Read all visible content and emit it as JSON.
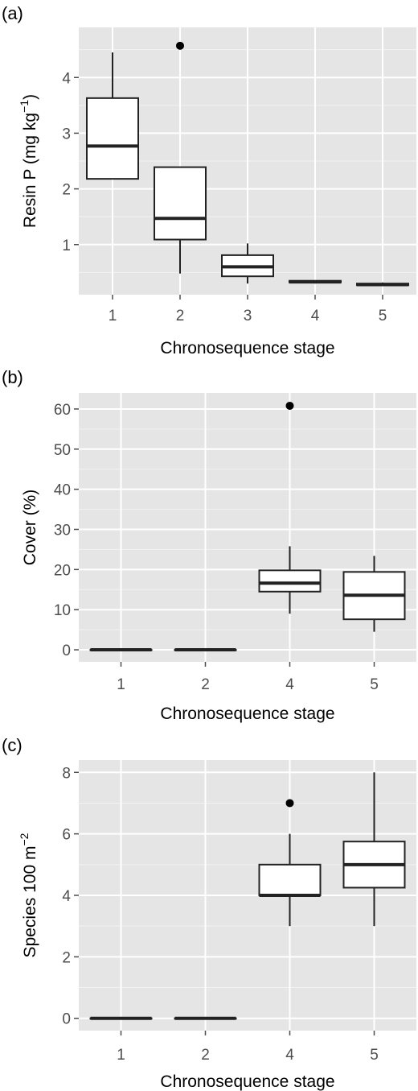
{
  "chart_data": [
    {
      "type": "box",
      "panel": "(a)",
      "xlabel": "Chronosequence stage",
      "ylabel": {
        "main": "Resin P ",
        "unit_a": "(mg kg",
        "sup": "−1",
        "unit_b": ")"
      },
      "categories": [
        "1",
        "2",
        "3",
        "4",
        "5"
      ],
      "ylim": [
        0.1,
        4.9
      ],
      "yticks": [
        1,
        2,
        3,
        4
      ],
      "ytick_labels": [
        "1",
        "2",
        "3",
        "4"
      ],
      "boxes": [
        {
          "category": "1",
          "whisker_low": 2.18,
          "q1": 2.18,
          "median": 2.77,
          "q3": 3.63,
          "whisker_high": 4.45,
          "outliers": []
        },
        {
          "category": "2",
          "whisker_low": 0.48,
          "q1": 1.09,
          "median": 1.47,
          "q3": 2.39,
          "whisker_high": 2.39,
          "outliers": [
            4.57
          ]
        },
        {
          "category": "3",
          "whisker_low": 0.3,
          "q1": 0.43,
          "median": 0.6,
          "q3": 0.81,
          "whisker_high": 1.02,
          "outliers": []
        },
        {
          "category": "4",
          "whisker_low": 0.3,
          "q1": 0.32,
          "median": 0.33,
          "q3": 0.35,
          "whisker_high": 0.35,
          "outliers": []
        },
        {
          "category": "5",
          "whisker_low": 0.26,
          "q1": 0.27,
          "median": 0.28,
          "q3": 0.3,
          "whisker_high": 0.32,
          "outliers": []
        }
      ]
    },
    {
      "type": "box",
      "panel": "(b)",
      "xlabel": "Chronosequence stage",
      "ylabel": {
        "main": "Cover (%)"
      },
      "categories": [
        "1",
        "2",
        "4",
        "5"
      ],
      "ylim": [
        -3,
        64
      ],
      "yticks": [
        0,
        10,
        20,
        30,
        40,
        50,
        60
      ],
      "ytick_labels": [
        "0",
        "10",
        "20",
        "30",
        "40",
        "50",
        "60"
      ],
      "boxes": [
        {
          "category": "1",
          "whisker_low": 0,
          "q1": 0,
          "median": 0,
          "q3": 0,
          "whisker_high": 0,
          "outliers": []
        },
        {
          "category": "2",
          "whisker_low": 0,
          "q1": 0,
          "median": 0,
          "q3": 0,
          "whisker_high": 0,
          "outliers": []
        },
        {
          "category": "4",
          "whisker_low": 9,
          "q1": 14.5,
          "median": 16.6,
          "q3": 19.8,
          "whisker_high": 25.8,
          "outliers": [
            60.8
          ]
        },
        {
          "category": "5",
          "whisker_low": 4.5,
          "q1": 7.6,
          "median": 13.6,
          "q3": 19.4,
          "whisker_high": 23.4,
          "outliers": []
        }
      ]
    },
    {
      "type": "box",
      "panel": "(c)",
      "xlabel": "Chronosequence stage",
      "ylabel": {
        "main": "Species 100 m",
        "sup": "−2"
      },
      "categories": [
        "1",
        "2",
        "4",
        "5"
      ],
      "ylim": [
        -0.4,
        8.4
      ],
      "yticks": [
        0,
        2,
        4,
        6,
        8
      ],
      "ytick_labels": [
        "0",
        "2",
        "4",
        "6",
        "8"
      ],
      "boxes": [
        {
          "category": "1",
          "whisker_low": 0,
          "q1": 0,
          "median": 0,
          "q3": 0,
          "whisker_high": 0,
          "outliers": []
        },
        {
          "category": "2",
          "whisker_low": 0,
          "q1": 0,
          "median": 0,
          "q3": 0,
          "whisker_high": 0,
          "outliers": []
        },
        {
          "category": "4",
          "whisker_low": 3,
          "q1": 4,
          "median": 4,
          "q3": 5,
          "whisker_high": 6,
          "outliers": [
            7
          ]
        },
        {
          "category": "5",
          "whisker_low": 3,
          "q1": 4.25,
          "median": 5,
          "q3": 5.75,
          "whisker_high": 8,
          "outliers": []
        }
      ]
    }
  ]
}
